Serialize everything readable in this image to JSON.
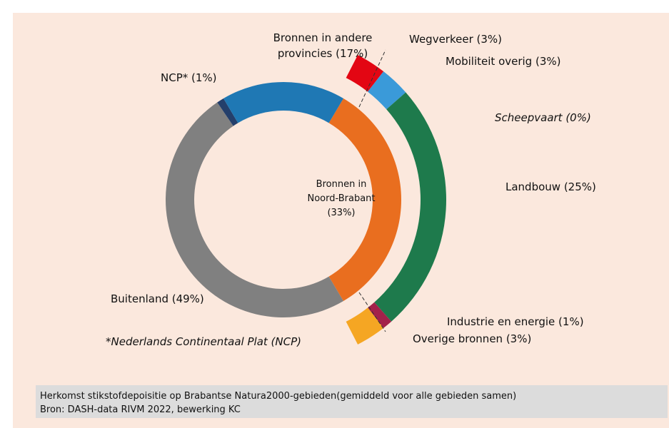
{
  "chart_data": {
    "type": "donut",
    "inner": [
      {
        "label": [
          "Bronnen in",
          "Noord-Brabant",
          "(33%)"
        ],
        "value": 33,
        "color": "#e96e1f"
      },
      {
        "label": [
          "Buitenland (49%)"
        ],
        "value": 49,
        "color": "#808080"
      },
      {
        "label": [
          "NCP* (1%)"
        ],
        "value": 1,
        "color": "#243f6b"
      },
      {
        "label": [
          "Bronnen in andere",
          "provincies (17%)"
        ],
        "value": 17,
        "color": "#1f78b4"
      }
    ],
    "outer": [
      {
        "label": "Wegverkeer (3%)",
        "value": 3,
        "color": "#e30613"
      },
      {
        "label": "Mobiliteit overig (3%)",
        "value": 3,
        "color": "#3a9ad9"
      },
      {
        "label": "Scheepvaart (0%)",
        "value": 0,
        "color": "#2b4f8c"
      },
      {
        "label": "Landbouw (25%)",
        "value": 25,
        "color": "#1e7a4c"
      },
      {
        "label": "Industrie en energie (1%)",
        "value": 1,
        "color": "#a3214a"
      },
      {
        "label": "Overige bronnen (3%)",
        "value": 3,
        "color": "#f5a623"
      }
    ],
    "footnote": "*Nederlands Continentaal Plat (NCP)",
    "title": "Herkomst stikstofdepoisitie op Brabantse Natura2000-gebieden(gemiddeld voor alle gebieden samen)",
    "source": "Bron: DASH-data RIVM 2022, bewerking KC"
  }
}
